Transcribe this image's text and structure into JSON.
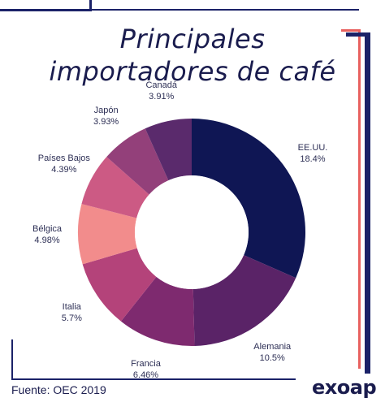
{
  "colors": {
    "navy": "#0f1654",
    "red": "#e8615f",
    "blue_frame": "#1b2268"
  },
  "title_line1": "Principales",
  "title_line2": "importadores de café",
  "footer": {
    "source": "Fuente: OEC 2019",
    "brand": "exoap"
  },
  "chart_data": {
    "type": "pie",
    "donut": true,
    "title": "Principales importadores de café",
    "slices": [
      {
        "name": "EE.UU.",
        "value": 18.4,
        "label": "18.4%",
        "color": "#0f1654"
      },
      {
        "name": "Alemania",
        "value": 10.5,
        "label": "10.5%",
        "color": "#5a2367"
      },
      {
        "name": "Francia",
        "value": 6.46,
        "label": "6.46%",
        "color": "#7e2a6f"
      },
      {
        "name": "Italia",
        "value": 5.7,
        "label": "5.7%",
        "color": "#b4437a"
      },
      {
        "name": "Bélgica",
        "value": 4.98,
        "label": "4.98%",
        "color": "#f28c8c"
      },
      {
        "name": "Países Bajos",
        "value": 4.39,
        "label": "4.39%",
        "color": "#cc5a84"
      },
      {
        "name": "Japón",
        "value": 3.93,
        "label": "3.93%",
        "color": "#93407a"
      },
      {
        "name": "Canadá",
        "value": 3.91,
        "label": "3.91%",
        "color": "#5a2a6c"
      }
    ]
  }
}
